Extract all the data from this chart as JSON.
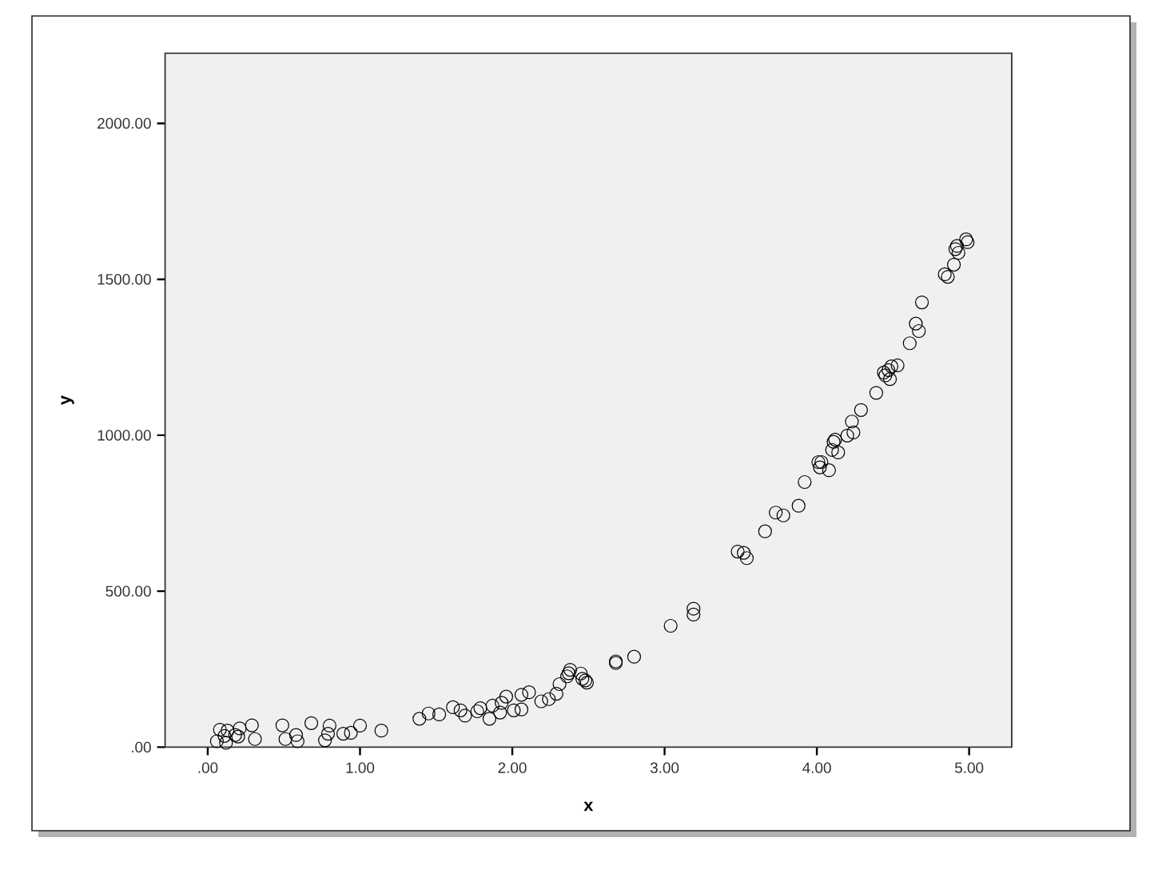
{
  "chart_data": {
    "type": "scatter",
    "xlabel": "x",
    "ylabel": "y",
    "color": "#000000",
    "marker": "circle",
    "x": [
      0.08,
      0.06,
      0.11,
      0.13,
      0.12,
      0.18,
      0.21,
      0.2,
      0.29,
      0.31,
      0.49,
      0.51,
      0.58,
      0.59,
      0.68,
      0.77,
      0.79,
      0.8,
      0.89,
      0.94,
      1.0,
      1.14,
      1.39,
      1.45,
      1.52,
      1.61,
      1.66,
      1.69,
      1.77,
      1.79,
      1.85,
      1.87,
      1.92,
      1.93,
      1.96,
      2.01,
      2.06,
      2.06,
      2.11,
      2.19,
      2.24,
      2.29,
      2.31,
      2.36,
      2.38,
      2.37,
      2.45,
      2.46,
      2.48,
      2.49,
      2.68,
      2.68,
      2.8,
      3.04,
      3.19,
      3.19,
      3.48,
      3.52,
      3.54,
      3.66,
      3.73,
      3.78,
      3.88,
      3.92,
      4.01,
      4.02,
      4.03,
      4.08,
      4.1,
      4.11,
      4.12,
      4.14,
      4.2,
      4.24,
      4.23,
      4.29,
      4.39,
      4.44,
      4.45,
      4.48,
      4.47,
      4.49,
      4.53,
      4.61,
      4.65,
      4.67,
      4.69,
      4.84,
      4.86,
      4.9,
      4.91,
      4.93,
      4.92,
      4.99,
      4.98
    ],
    "values": [
      56,
      19,
      36,
      53,
      14,
      39,
      60,
      34,
      70,
      26,
      70,
      26,
      39,
      19,
      77,
      22,
      43,
      69,
      43,
      46,
      69,
      53,
      91,
      108,
      105,
      128,
      118,
      101,
      115,
      125,
      91,
      133,
      111,
      142,
      162,
      118,
      121,
      168,
      176,
      147,
      154,
      171,
      202,
      227,
      248,
      237,
      236,
      219,
      214,
      207,
      270,
      275,
      290,
      389,
      444,
      425,
      627,
      623,
      606,
      692,
      752,
      743,
      774,
      850,
      914,
      897,
      914,
      888,
      953,
      979,
      986,
      945,
      999,
      1009,
      1044,
      1081,
      1136,
      1201,
      1192,
      1180,
      1209,
      1221,
      1224,
      1295,
      1358,
      1334,
      1426,
      1516,
      1508,
      1547,
      1597,
      1585,
      1607,
      1619,
      1628
    ],
    "xlim": [
      -0.28,
      5.28
    ],
    "ylim": [
      0,
      2225
    ],
    "xticks": [
      {
        "value": 0,
        "label": ".00"
      },
      {
        "value": 1,
        "label": "1.00"
      },
      {
        "value": 2,
        "label": "2.00"
      },
      {
        "value": 3,
        "label": "3.00"
      },
      {
        "value": 4,
        "label": "4.00"
      },
      {
        "value": 5,
        "label": "5.00"
      }
    ],
    "yticks": [
      {
        "value": 0,
        "label": ".00"
      },
      {
        "value": 500,
        "label": "500.00"
      },
      {
        "value": 1000,
        "label": "1000.00"
      },
      {
        "value": 1500,
        "label": "1500.00"
      },
      {
        "value": 2000,
        "label": "2000.00"
      }
    ]
  }
}
